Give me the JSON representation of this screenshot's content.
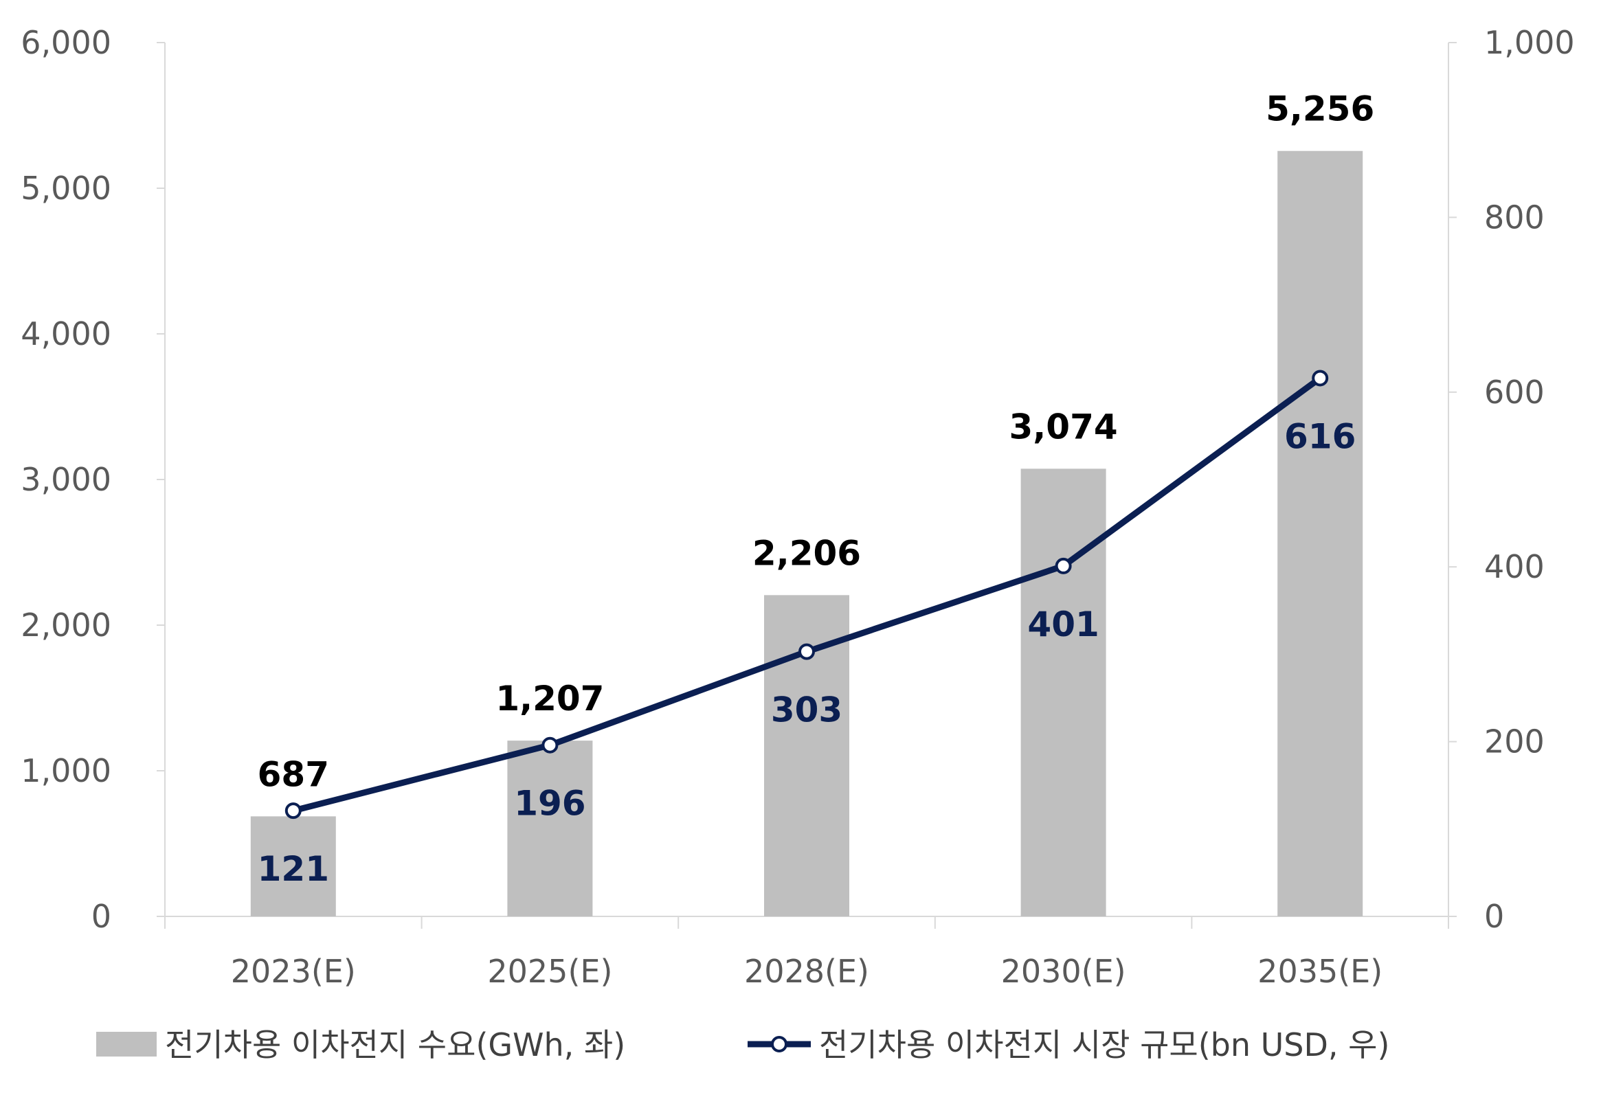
{
  "chart_data": {
    "type": "bar+line",
    "categories": [
      "2023(E)",
      "2025(E)",
      "2028(E)",
      "2030(E)",
      "2035(E)"
    ],
    "series": [
      {
        "name": "전기차용 이차전지 수요(GWh, 좌)",
        "type": "bar",
        "axis": "left",
        "values": [
          687,
          1207,
          2206,
          3074,
          5256
        ],
        "labels": [
          "687",
          "1,207",
          "2,206",
          "3,074",
          "5,256"
        ],
        "color": "#bfbfbf"
      },
      {
        "name": "전기차용 이차전지 시장 규모(bn USD, 우)",
        "type": "line",
        "axis": "right",
        "values": [
          121,
          196,
          303,
          401,
          616
        ],
        "labels": [
          "121",
          "196",
          "303",
          "401",
          "616"
        ],
        "color": "#0b1f52"
      }
    ],
    "left_axis": {
      "ylim": [
        0,
        6000
      ],
      "ticks": [
        "0",
        "1,000",
        "2,000",
        "3,000",
        "4,000",
        "5,000",
        "6,000"
      ]
    },
    "right_axis": {
      "ylim": [
        0,
        1000
      ],
      "ticks": [
        "0",
        "200",
        "400",
        "600",
        "800",
        "1,000"
      ]
    },
    "grid": false,
    "legend_position": "bottom"
  }
}
